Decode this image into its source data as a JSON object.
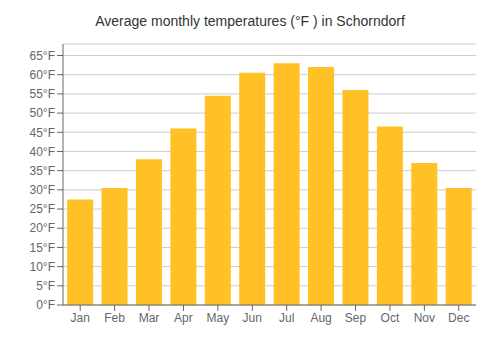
{
  "chart_data": {
    "type": "bar",
    "title": "Average monthly temperatures (°F ) in Schorndorf",
    "categories": [
      "Jan",
      "Feb",
      "Mar",
      "Apr",
      "May",
      "Jun",
      "Jul",
      "Aug",
      "Sep",
      "Oct",
      "Nov",
      "Dec"
    ],
    "values": [
      27.5,
      30.5,
      38.0,
      46.0,
      54.5,
      60.5,
      63.0,
      62.0,
      56.0,
      46.5,
      37.0,
      30.5
    ],
    "color": "#FFC125",
    "ylim": [
      0,
      68
    ],
    "yticks": [
      {
        "value": 0,
        "label": "0°F"
      },
      {
        "value": 5,
        "label": "5°F"
      },
      {
        "value": 10,
        "label": "10°F"
      },
      {
        "value": 15,
        "label": "15°F"
      },
      {
        "value": 20,
        "label": "20°F"
      },
      {
        "value": 25,
        "label": "25°F"
      },
      {
        "value": 30,
        "label": "30°F"
      },
      {
        "value": 35,
        "label": "35°F"
      },
      {
        "value": 40,
        "label": "40°F"
      },
      {
        "value": 45,
        "label": "45°F"
      },
      {
        "value": 50,
        "label": "50°F"
      },
      {
        "value": 55,
        "label": "55°F"
      },
      {
        "value": 60,
        "label": "60°F"
      },
      {
        "value": 65,
        "label": "65°F"
      }
    ],
    "grid": true
  }
}
